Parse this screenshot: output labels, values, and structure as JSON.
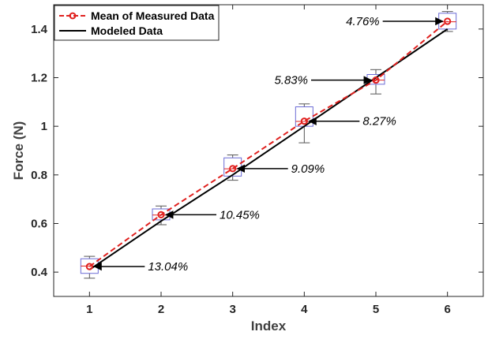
{
  "chart_data": {
    "type": "line",
    "xlabel": "Index",
    "ylabel": "Force (N)",
    "xlim": [
      0.5,
      6.5
    ],
    "ylim": [
      0.3,
      1.5
    ],
    "xticks": [
      1,
      2,
      3,
      4,
      5,
      6
    ],
    "yticks": [
      0.4,
      0.6,
      0.8,
      1.0,
      1.2,
      1.4
    ],
    "ytick_labels": [
      "0.4",
      "0.6",
      "0.8",
      "1",
      "1.2",
      "1.4"
    ],
    "legend_position": "top-left",
    "series": [
      {
        "name": "Mean of Measured Data",
        "style": "dashed-circle-markers",
        "color": "#e0211f",
        "x": [
          1,
          2,
          3,
          4,
          5,
          6
        ],
        "y": [
          0.423,
          0.636,
          0.826,
          1.021,
          1.19,
          1.432
        ]
      },
      {
        "name": "Modeled Data",
        "style": "solid",
        "color": "#000000",
        "x": [
          1,
          2,
          3,
          4,
          5,
          6
        ],
        "y": [
          0.41,
          0.61,
          0.8,
          1.0,
          1.2,
          1.4
        ]
      }
    ],
    "boxes": [
      {
        "x": 1,
        "min": 0.375,
        "q1": 0.395,
        "median": 0.425,
        "q3": 0.455,
        "max": 0.465
      },
      {
        "x": 2,
        "min": 0.595,
        "q1": 0.615,
        "median": 0.635,
        "q3": 0.66,
        "max": 0.672
      },
      {
        "x": 3,
        "min": 0.778,
        "q1": 0.795,
        "median": 0.825,
        "q3": 0.87,
        "max": 0.882
      },
      {
        "x": 4,
        "min": 0.932,
        "q1": 1.0,
        "median": 1.02,
        "q3": 1.08,
        "max": 1.092
      },
      {
        "x": 5,
        "min": 1.133,
        "q1": 1.173,
        "median": 1.19,
        "q3": 1.213,
        "max": 1.233
      },
      {
        "x": 6,
        "min": 1.39,
        "q1": 1.4,
        "median": 1.43,
        "q3": 1.465,
        "max": 1.472
      }
    ],
    "box_color": "#6b6bd6",
    "annotations": [
      {
        "text": "13.04%",
        "x": 1,
        "y": 0.423,
        "side": "right"
      },
      {
        "text": "10.45%",
        "x": 2,
        "y": 0.636,
        "side": "right"
      },
      {
        "text": "9.09%",
        "x": 3,
        "y": 0.826,
        "side": "right"
      },
      {
        "text": "8.27%",
        "x": 4,
        "y": 1.021,
        "side": "right"
      },
      {
        "text": "5.83%",
        "x": 5,
        "y": 1.19,
        "side": "left"
      },
      {
        "text": "4.76%",
        "x": 6,
        "y": 1.432,
        "side": "left"
      }
    ]
  }
}
